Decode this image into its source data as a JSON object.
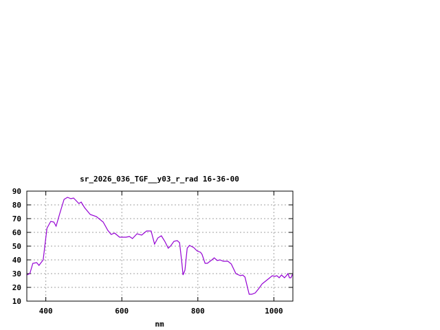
{
  "chart_data": {
    "type": "line",
    "title": "sr_2026_036_TGF__y03_r_rad 16-36-00",
    "xlabel": "nm",
    "ylabel": "",
    "xlim": [
      350,
      1050
    ],
    "ylim": [
      10,
      90
    ],
    "xticks": [
      400,
      600,
      800,
      1000
    ],
    "yticks": [
      10,
      20,
      30,
      40,
      50,
      60,
      70,
      80,
      90
    ],
    "grid": true,
    "series_color": "#9400d3",
    "series": [
      {
        "x": [
          350,
          358,
          366,
          376,
          382,
          393,
          403,
          413,
          421,
          427,
          437,
          448,
          457,
          466,
          473,
          487,
          493,
          502,
          517,
          533,
          551,
          563,
          572,
          581,
          594,
          611,
          620,
          628,
          640,
          652,
          665,
          677,
          686,
          695,
          704,
          713,
          722,
          728,
          737,
          746,
          752,
          758,
          761,
          766,
          772,
          778,
          789,
          798,
          807,
          811,
          819,
          825,
          837,
          843,
          851,
          858,
          867,
          879,
          888,
          900,
          912,
          918,
          924,
          935,
          942,
          951,
          960,
          969,
          978,
          987,
          996,
          1002,
          1008,
          1014,
          1020,
          1028,
          1033,
          1037,
          1041,
          1045,
          1049
        ],
        "y": [
          29,
          30,
          37.5,
          38,
          36,
          40,
          63,
          68,
          67.5,
          64.5,
          74,
          84,
          85.5,
          84.5,
          85,
          81,
          82,
          78,
          73,
          71.5,
          67.5,
          61.5,
          58.5,
          59.5,
          56.5,
          56.5,
          57,
          55.5,
          59,
          58,
          61,
          61,
          51.5,
          56,
          57.5,
          53.5,
          48.5,
          50,
          53.5,
          54,
          52.5,
          37.5,
          29,
          32.5,
          48.5,
          50.5,
          49,
          46.5,
          45.5,
          44,
          37.5,
          37.5,
          40,
          41.5,
          39.5,
          40,
          39,
          39,
          37,
          30,
          28.5,
          29,
          27.5,
          15,
          15,
          16,
          19,
          22.5,
          24.5,
          26.5,
          28.5,
          28,
          28.5,
          27,
          29,
          27,
          28.5,
          30,
          27,
          27,
          29.5
        ]
      }
    ]
  }
}
